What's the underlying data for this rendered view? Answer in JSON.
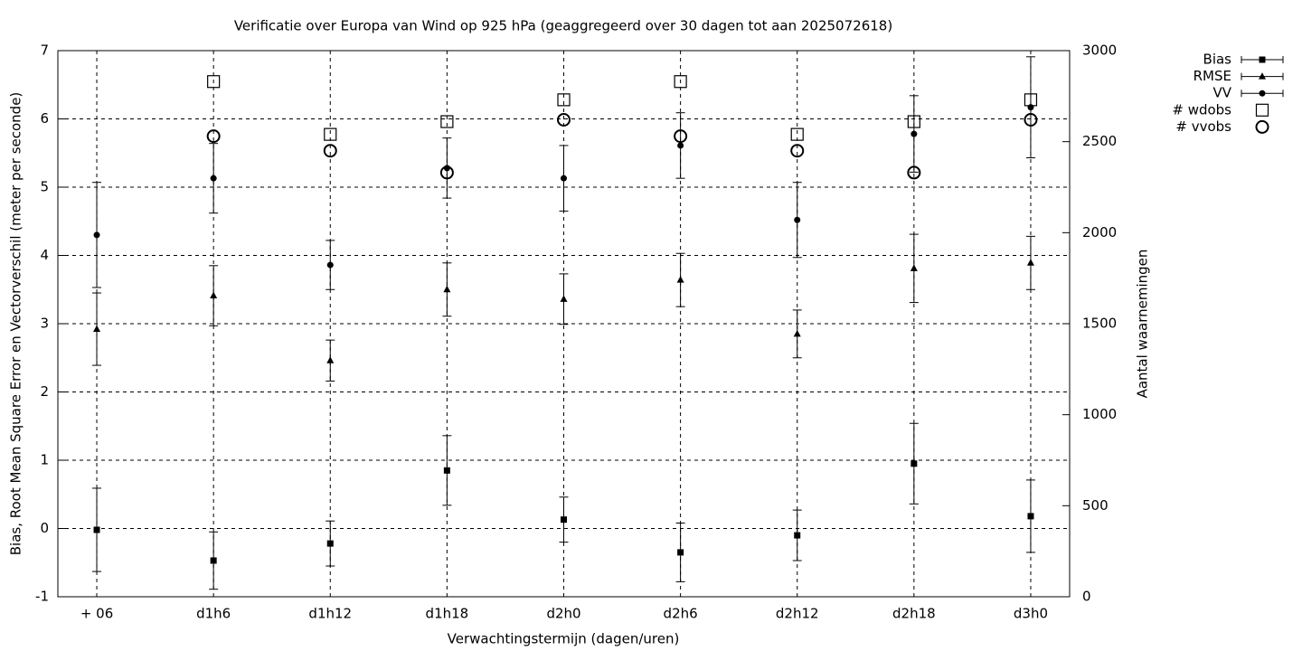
{
  "chart_data": {
    "type": "errorbar",
    "title": "Verificatie over Europa van Wind op 925 hPa (geaggregeerd over 30 dagen tot aan 2025072618)",
    "x_label": "Verwachtingstermijn (dagen/uren)",
    "y_label": "Bias, Root Mean Square Error en Vectorverschil (meter per seconde)",
    "y2_label": "Aantal waarnemingen",
    "categories": [
      "+ 06",
      "d1h6",
      "d1h12",
      "d1h18",
      "d2h0",
      "d2h6",
      "d2h12",
      "d2h18",
      "d3h0"
    ],
    "ylim": [
      -1,
      7
    ],
    "yticks": [
      -1,
      0,
      1,
      2,
      3,
      4,
      5,
      6,
      7
    ],
    "y2lim": [
      0,
      3000
    ],
    "y2ticks": [
      0,
      500,
      1000,
      1500,
      2000,
      2500,
      3000
    ],
    "grid": true,
    "legend": "top-right",
    "series": [
      {
        "name": "Bias",
        "color": "#000000",
        "marker": "filled-square",
        "values": [
          -0.02,
          -0.47,
          -0.22,
          0.85,
          0.13,
          -0.35,
          -0.1,
          0.95,
          0.18
        ],
        "errors": [
          0.61,
          0.42,
          0.33,
          0.51,
          0.33,
          0.43,
          0.37,
          0.59,
          0.53
        ]
      },
      {
        "name": "RMSE",
        "color": "#000000",
        "marker": "filled-triangle",
        "values": [
          2.92,
          3.41,
          2.46,
          3.5,
          3.36,
          3.64,
          2.85,
          3.81,
          3.89
        ],
        "errors": [
          0.53,
          0.44,
          0.3,
          0.39,
          0.37,
          0.39,
          0.35,
          0.5,
          0.39
        ]
      },
      {
        "name": "VV",
        "color": "#000000",
        "marker": "filled-circle",
        "values": [
          4.3,
          5.13,
          3.86,
          5.28,
          5.13,
          5.61,
          4.52,
          5.78,
          6.17
        ],
        "errors": [
          0.77,
          0.51,
          0.36,
          0.44,
          0.48,
          0.48,
          0.55,
          0.56,
          0.74
        ]
      },
      {
        "name": "# wdobs",
        "color": "#000000",
        "marker": "open-square",
        "axis": "y2",
        "values": [
          null,
          2830,
          2540,
          2610,
          2730,
          2830,
          2540,
          2610,
          2730
        ]
      },
      {
        "name": "# vvobs",
        "color": "#000000",
        "marker": "open-circle",
        "axis": "y2",
        "values": [
          null,
          2530,
          2450,
          2330,
          2620,
          2530,
          2450,
          2330,
          2620
        ]
      }
    ]
  }
}
